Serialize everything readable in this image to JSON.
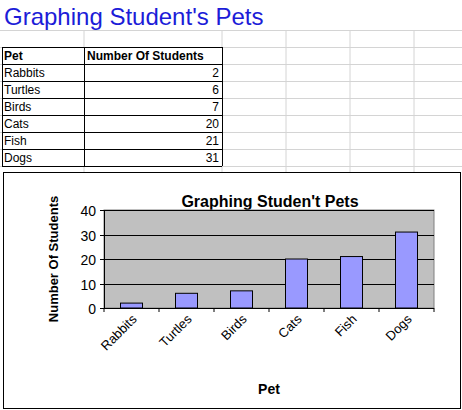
{
  "header": {
    "title": "Graphing Student's Pets"
  },
  "table": {
    "columns": [
      "Pet",
      "Number Of Students"
    ],
    "rows": [
      [
        "Rabbits",
        2
      ],
      [
        "Turtles",
        6
      ],
      [
        "Birds",
        7
      ],
      [
        "Cats",
        20
      ],
      [
        "Fish",
        21
      ],
      [
        "Dogs",
        31
      ]
    ]
  },
  "chart_data": {
    "type": "bar",
    "title": "Graphing Studen't Pets",
    "x_label": "Pet",
    "y_label": "Number Of Students",
    "categories": [
      "Rabbits",
      "Turtles",
      "Birds",
      "Cats",
      "Fish",
      "Dogs"
    ],
    "values": [
      2,
      6,
      7,
      20,
      21,
      31
    ],
    "color": "#9999ff",
    "ylim": [
      0,
      40
    ],
    "yticks": [
      0,
      10,
      20,
      30,
      40
    ],
    "grid": true
  }
}
